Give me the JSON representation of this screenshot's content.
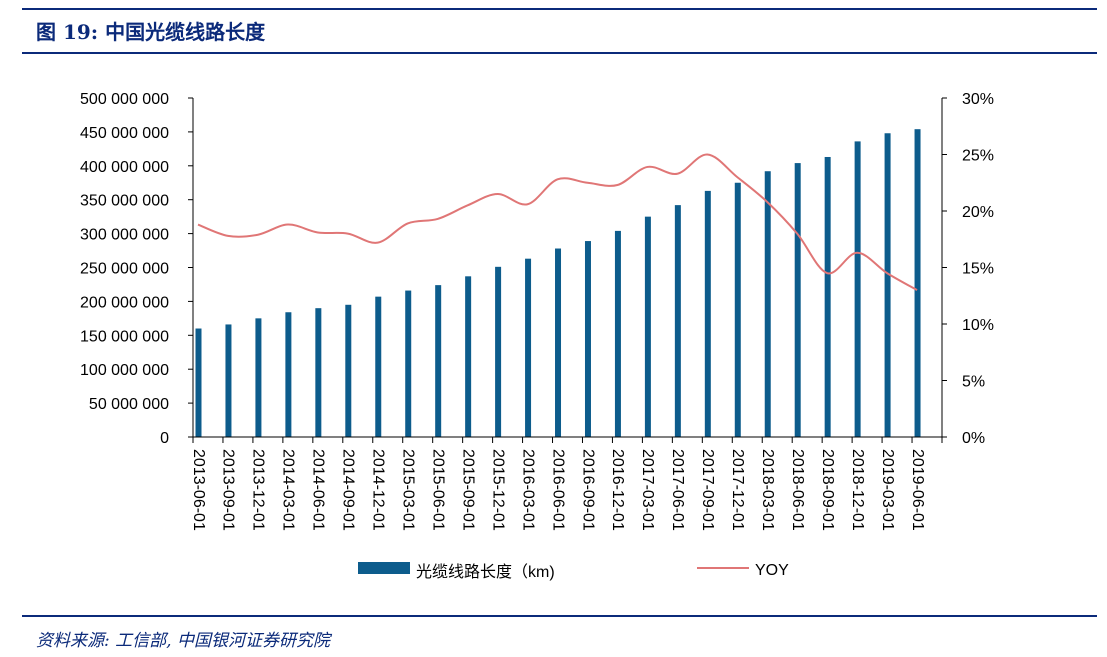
{
  "title": "图 19:  中国光缆线路长度",
  "source": "资料来源:  工信部,  中国银河证券研究院",
  "colors": {
    "bar": "#0d5c8c",
    "line": "#e07676",
    "heading": "#0b2a7a"
  },
  "chart_data": {
    "type": "bar",
    "categories": [
      "2013-06-01",
      "2013-09-01",
      "2013-12-01",
      "2014-03-01",
      "2014-06-01",
      "2014-09-01",
      "2014-12-01",
      "2015-03-01",
      "2015-06-01",
      "2015-09-01",
      "2015-12-01",
      "2016-03-01",
      "2016-06-01",
      "2016-09-01",
      "2016-12-01",
      "2017-03-01",
      "2017-06-01",
      "2017-09-01",
      "2017-12-01",
      "2018-03-01",
      "2018-06-01",
      "2018-09-01",
      "2018-12-01",
      "2019-03-01",
      "2019-06-01"
    ],
    "series": [
      {
        "name": "光缆线路长度（km)",
        "type": "bar",
        "axis": "left",
        "values": [
          160000000,
          166000000,
          175000000,
          184000000,
          190000000,
          195000000,
          207000000,
          216000000,
          224000000,
          237000000,
          251000000,
          263000000,
          278000000,
          289000000,
          304000000,
          325000000,
          342000000,
          363000000,
          375000000,
          392000000,
          404000000,
          413000000,
          436000000,
          448000000,
          454000000
        ]
      },
      {
        "name": "YOY",
        "type": "line",
        "axis": "right",
        "values": [
          18.8,
          17.8,
          17.9,
          18.8,
          18.1,
          18.0,
          17.2,
          18.9,
          19.3,
          20.5,
          21.5,
          20.6,
          22.8,
          22.5,
          22.3,
          23.9,
          23.3,
          25.0,
          23.0,
          20.8,
          18.0,
          14.5,
          16.3,
          14.5,
          13.0
        ]
      }
    ],
    "y_left": {
      "min": 0,
      "max": 500000000,
      "ticks": [
        "0",
        "50 000 000",
        "100 000 000",
        "150 000 000",
        "200 000 000",
        "250 000 000",
        "300 000 000",
        "350 000 000",
        "400 000 000",
        "450 000 000",
        "500 000 000"
      ]
    },
    "y_right": {
      "min": 0,
      "max": 30,
      "ticks": [
        "0%",
        "5%",
        "10%",
        "15%",
        "20%",
        "25%",
        "30%"
      ]
    },
    "legend_position": "bottom",
    "grid": false
  }
}
